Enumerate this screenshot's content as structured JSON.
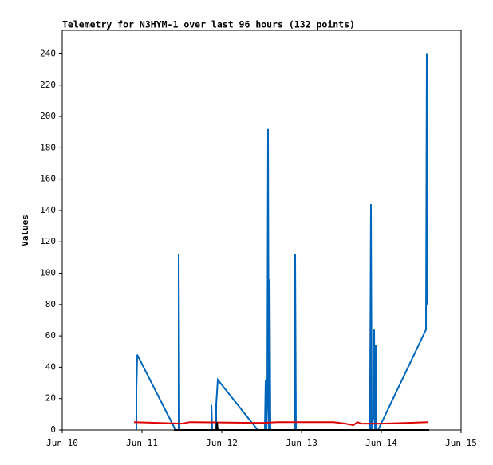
{
  "chart_data": {
    "type": "line",
    "title": "Telemetry for N3HYM-1 over last 96 hours (132 points)",
    "y_label": "Values",
    "xlim": [
      0,
      5
    ],
    "xticks": [
      {
        "value": 0,
        "label": "Jun 10"
      },
      {
        "value": 1,
        "label": "Jun 11"
      },
      {
        "value": 2,
        "label": "Jun 12"
      },
      {
        "value": 3,
        "label": "Jun 13"
      },
      {
        "value": 4,
        "label": "Jun 14"
      },
      {
        "value": 5,
        "label": "Jun 15"
      }
    ],
    "ylim": [
      0,
      255
    ],
    "yticks": [
      0,
      20,
      40,
      60,
      80,
      100,
      120,
      140,
      160,
      180,
      200,
      220,
      240
    ],
    "series": [
      {
        "color": "#0066bb",
        "x": [
          0.93,
          0.93,
          0.94,
          1.42,
          1.46,
          1.46,
          1.47,
          1.87,
          1.87,
          1.88,
          1.93,
          1.93,
          1.95,
          2.45,
          2.54,
          2.55,
          2.56,
          2.57,
          2.58,
          2.59,
          2.6,
          2.61,
          2.92,
          2.92,
          2.93,
          3.86,
          3.86,
          3.87,
          3.88,
          3.9,
          3.91,
          3.92,
          3.93,
          3.94,
          3.96,
          4.56,
          4.57,
          4.58
        ],
        "values": [
          0,
          25,
          48,
          0,
          0,
          112,
          0,
          0,
          16,
          0,
          0,
          16,
          32,
          0,
          0,
          32,
          0,
          16,
          192,
          0,
          96,
          0,
          0,
          112,
          0,
          0,
          32,
          144,
          0,
          8,
          64,
          0,
          54,
          0,
          0,
          64,
          240,
          80
        ]
      },
      {
        "color": "#dd0000",
        "x": [
          0.9,
          1.5,
          1.6,
          2.5,
          2.7,
          3.4,
          3.55,
          3.65,
          3.7,
          3.75,
          4.0,
          4.3,
          4.58
        ],
        "values": [
          5,
          4,
          5,
          4.5,
          5,
          5,
          4,
          3,
          5,
          4,
          4,
          4.5,
          5
        ]
      },
      {
        "color": "#000000",
        "x": [
          1.4,
          1.93,
          1.94,
          1.95,
          4.6
        ],
        "values": [
          0,
          0,
          5,
          0,
          0
        ]
      }
    ]
  }
}
